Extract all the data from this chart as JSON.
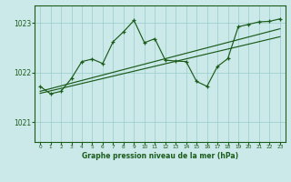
{
  "title": "Graphe pression niveau de la mer (hPa)",
  "bg_color": "#cce9e9",
  "grid_color": "#99cccc",
  "line_color": "#1a5c1a",
  "x_min": -0.5,
  "x_max": 23.5,
  "y_min": 1020.6,
  "y_max": 1023.35,
  "yticks": [
    1021,
    1022,
    1023
  ],
  "xticks": [
    0,
    1,
    2,
    3,
    4,
    5,
    6,
    7,
    8,
    9,
    10,
    11,
    12,
    13,
    14,
    15,
    16,
    17,
    18,
    19,
    20,
    21,
    22,
    23
  ],
  "series1_x": [
    0,
    1,
    2,
    3,
    4,
    5,
    6,
    7,
    8,
    9,
    10,
    11,
    12,
    13,
    14,
    15,
    16,
    17,
    18,
    19,
    20,
    21,
    22,
    23
  ],
  "series1_y": [
    1021.72,
    1021.57,
    1021.62,
    1021.88,
    1022.22,
    1022.27,
    1022.18,
    1022.62,
    1022.82,
    1023.05,
    1022.6,
    1022.68,
    1022.25,
    1022.23,
    1022.22,
    1021.82,
    1021.72,
    1022.12,
    1022.28,
    1022.92,
    1022.97,
    1023.02,
    1023.03,
    1023.08
  ],
  "series2_x": [
    0,
    23
  ],
  "series2_y": [
    1021.58,
    1022.72
  ],
  "series3_x": [
    0,
    23
  ],
  "series3_y": [
    1021.62,
    1022.88
  ]
}
